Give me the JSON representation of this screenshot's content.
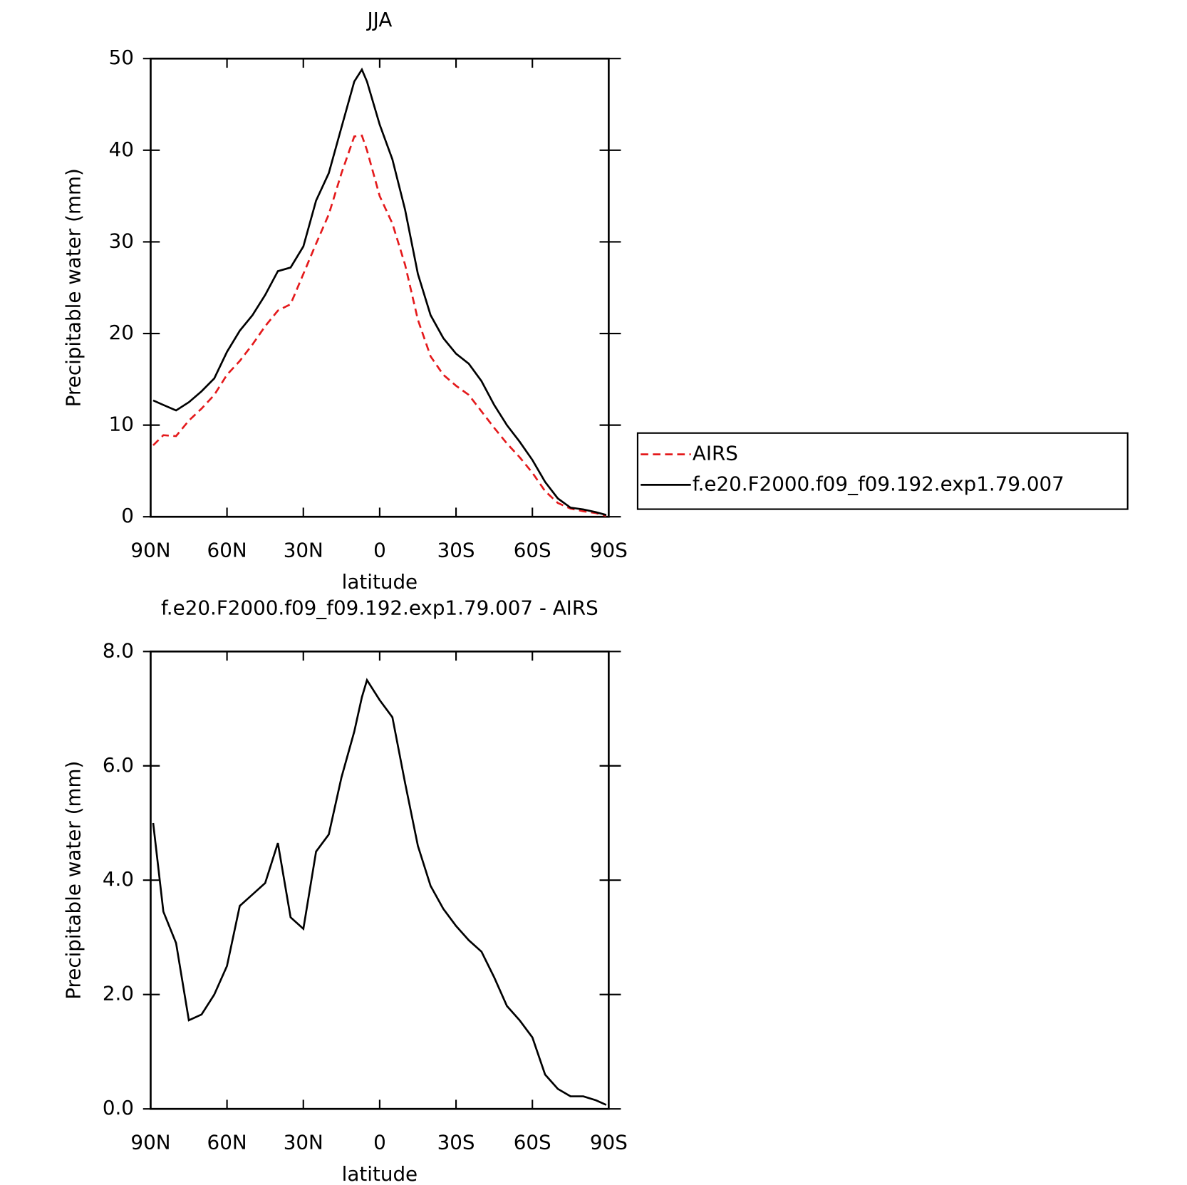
{
  "chart_data": [
    {
      "type": "line",
      "title": "JJA",
      "x_label": "latitude",
      "y_label": "Precipitable water (mm)",
      "x": [
        89,
        85,
        80,
        75,
        70,
        65,
        60,
        55,
        50,
        45,
        40,
        35,
        30,
        25,
        20,
        15,
        10,
        7,
        5,
        0,
        -5,
        -10,
        -15,
        -20,
        -25,
        -30,
        -35,
        -40,
        -45,
        -50,
        -55,
        -60,
        -65,
        -70,
        -75,
        -80,
        -85,
        -89
      ],
      "series": [
        {
          "name": "AIRS",
          "color": "#e41a1c",
          "dash": true,
          "values": [
            7.8,
            8.9,
            8.8,
            10.5,
            11.8,
            13.3,
            15.5,
            17.0,
            18.8,
            20.8,
            22.5,
            23.2,
            26.5,
            29.8,
            33.0,
            37.5,
            41.5,
            41.6,
            40.0,
            35.0,
            32.0,
            27.5,
            21.5,
            17.5,
            15.5,
            14.3,
            13.3,
            11.5,
            9.7,
            8.0,
            6.5,
            4.8,
            2.8,
            1.5,
            0.9,
            0.6,
            0.4,
            0.1
          ]
        },
        {
          "name": "f.e20.F2000.f09_f09.192.exp1.79.007",
          "color": "#000000",
          "dash": false,
          "values": [
            12.7,
            12.2,
            11.6,
            12.5,
            13.7,
            15.1,
            18.0,
            20.3,
            22.0,
            24.2,
            26.8,
            27.2,
            29.5,
            34.5,
            37.5,
            42.5,
            47.5,
            48.8,
            47.5,
            42.8,
            39.0,
            33.5,
            26.5,
            22.0,
            19.5,
            17.8,
            16.7,
            14.8,
            12.2,
            10.0,
            8.2,
            6.2,
            3.8,
            2.0,
            1.0,
            0.8,
            0.5,
            0.2
          ]
        }
      ],
      "xlim": [
        90,
        -90
      ],
      "xticks": [
        {
          "value": 90,
          "label": "90N"
        },
        {
          "value": 60,
          "label": "60N"
        },
        {
          "value": 30,
          "label": "30N"
        },
        0,
        {
          "value": -30,
          "label": "30S"
        },
        {
          "value": -60,
          "label": "60S"
        },
        {
          "value": -90,
          "label": "90S"
        }
      ],
      "ylim": [
        0,
        50
      ],
      "yticks": [
        0,
        10,
        20,
        30,
        40,
        50
      ],
      "legend": "right"
    },
    {
      "type": "line",
      "title": "f.e20.F2000.f09_f09.192.exp1.79.007 - AIRS",
      "x_label": "latitude",
      "y_label": "Precipitable water (mm)",
      "x": [
        89,
        85,
        80,
        75,
        70,
        65,
        60,
        55,
        50,
        45,
        40,
        35,
        30,
        25,
        20,
        15,
        10,
        7,
        5,
        0,
        -5,
        -10,
        -15,
        -20,
        -25,
        -30,
        -35,
        -40,
        -45,
        -50,
        -55,
        -60,
        -65,
        -70,
        -75,
        -80,
        -85,
        -89
      ],
      "series": [
        {
          "color": "#000000",
          "dash": false,
          "values": [
            5.0,
            3.45,
            2.9,
            1.55,
            1.65,
            2.0,
            2.5,
            3.55,
            3.75,
            3.95,
            4.65,
            3.35,
            3.15,
            4.5,
            4.8,
            5.8,
            6.6,
            7.2,
            7.5,
            7.15,
            6.85,
            5.7,
            4.6,
            3.9,
            3.5,
            3.2,
            2.95,
            2.75,
            2.3,
            1.8,
            1.55,
            1.25,
            0.6,
            0.35,
            0.22,
            0.22,
            0.15,
            0.07
          ]
        }
      ],
      "xlim": [
        90,
        -90
      ],
      "xticks": [
        {
          "value": 90,
          "label": "90N"
        },
        {
          "value": 60,
          "label": "60N"
        },
        {
          "value": 30,
          "label": "30N"
        },
        0,
        {
          "value": -30,
          "label": "30S"
        },
        {
          "value": -60,
          "label": "60S"
        },
        {
          "value": -90,
          "label": "90S"
        }
      ],
      "ylim": [
        0,
        8
      ],
      "yticks": [
        {
          "value": 0,
          "label": "0.0"
        },
        {
          "value": 2,
          "label": "2.0"
        },
        {
          "value": 4,
          "label": "4.0"
        },
        {
          "value": 6,
          "label": "6.0"
        },
        {
          "value": 8,
          "label": "8.0"
        }
      ]
    }
  ]
}
